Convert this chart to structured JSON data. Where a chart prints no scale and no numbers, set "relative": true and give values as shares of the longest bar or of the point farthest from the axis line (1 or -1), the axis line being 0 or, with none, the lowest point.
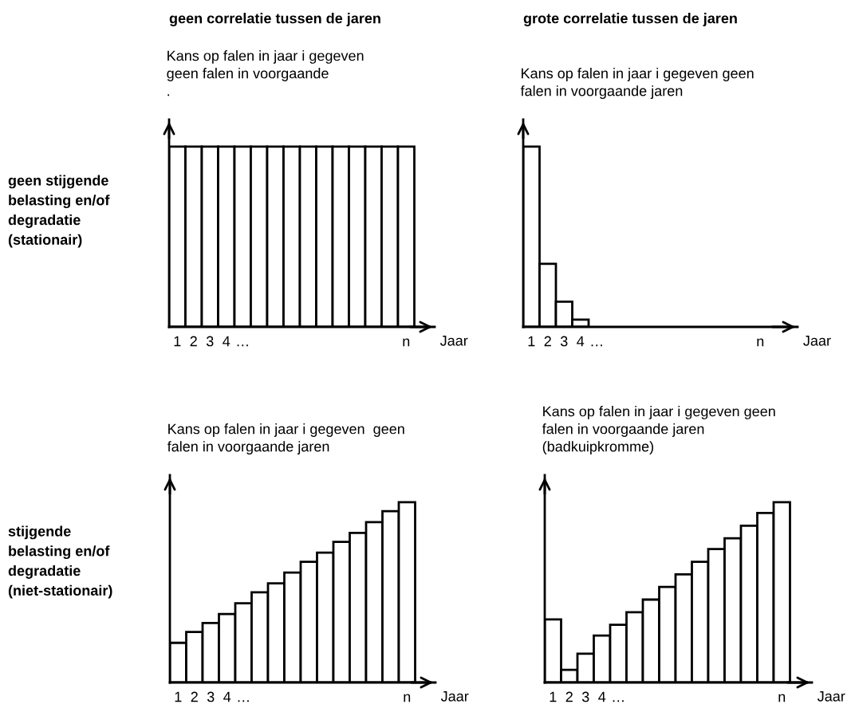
{
  "chart_data": [
    {
      "type": "bar",
      "title": "geen correlatie tussen de jaren",
      "ylabel": "Kans op falen in jaar i gegeven\ngeen falen in voorgaande\n.",
      "xlabel": "Jaar",
      "relative": true,
      "color": "#ffffff",
      "categories": [
        "1",
        "2",
        "3",
        "4",
        "…",
        null,
        null,
        null,
        null,
        null,
        null,
        null,
        null,
        null,
        "n"
      ],
      "values": [
        1,
        1,
        1,
        1,
        1,
        1,
        1,
        1,
        1,
        1,
        1,
        1,
        1,
        1,
        1
      ],
      "annotations": [
        "geen stijgende\nbelasting en/of\ndegradatie\n(stationair)"
      ]
    },
    {
      "type": "bar",
      "ylabel": "Kans op falen in jaar i gegeven  geen\nfalen in voorgaande jaren",
      "xlabel": "Jaar",
      "relative": true,
      "color": "#ffffff",
      "categories": [
        "1",
        "2",
        "3",
        "4",
        "…",
        null,
        null,
        null,
        null,
        null,
        null,
        null,
        null,
        null,
        "n"
      ],
      "values": [
        0.22,
        0.28,
        0.33,
        0.38,
        0.44,
        0.5,
        0.55,
        0.61,
        0.67,
        0.72,
        0.78,
        0.83,
        0.89,
        0.95,
        1
      ],
      "annotations": [
        "stijgende\nbelasting en/of\ndegradatie\n(niet-stationair)"
      ]
    },
    {
      "type": "bar",
      "ylabel": "Kans op falen in jaar i gegeven geen\nfalen in voorgaande jaren\n(badkuipkromme)",
      "xlabel": "Jaar",
      "relative": true,
      "color": "#ffffff",
      "categories": [
        "1",
        "2",
        "3",
        "4",
        "…",
        null,
        null,
        null,
        null,
        null,
        null,
        null,
        null,
        null,
        "n"
      ],
      "values": [
        0.35,
        0.07,
        0.16,
        0.26,
        0.32,
        0.39,
        0.46,
        0.53,
        0.6,
        0.67,
        0.74,
        0.8,
        0.87,
        0.94,
        1
      ]
    },
    {
      "type": "bar",
      "title": "grote correlatie tussen de jaren",
      "ylabel": "Kans op falen in jaar i gegeven geen\nfalen in voorgaande jaren",
      "xlabel": "Jaar",
      "relative": true,
      "color": "#ffffff",
      "categories": [
        "1",
        "2",
        "3",
        "4",
        "…",
        null,
        null,
        null,
        null,
        null,
        null,
        null,
        null,
        null,
        "n"
      ],
      "values": [
        1,
        0.35,
        0.14,
        0.04,
        null,
        null,
        null,
        null,
        null,
        null,
        null,
        null,
        null,
        null,
        null
      ]
    }
  ]
}
